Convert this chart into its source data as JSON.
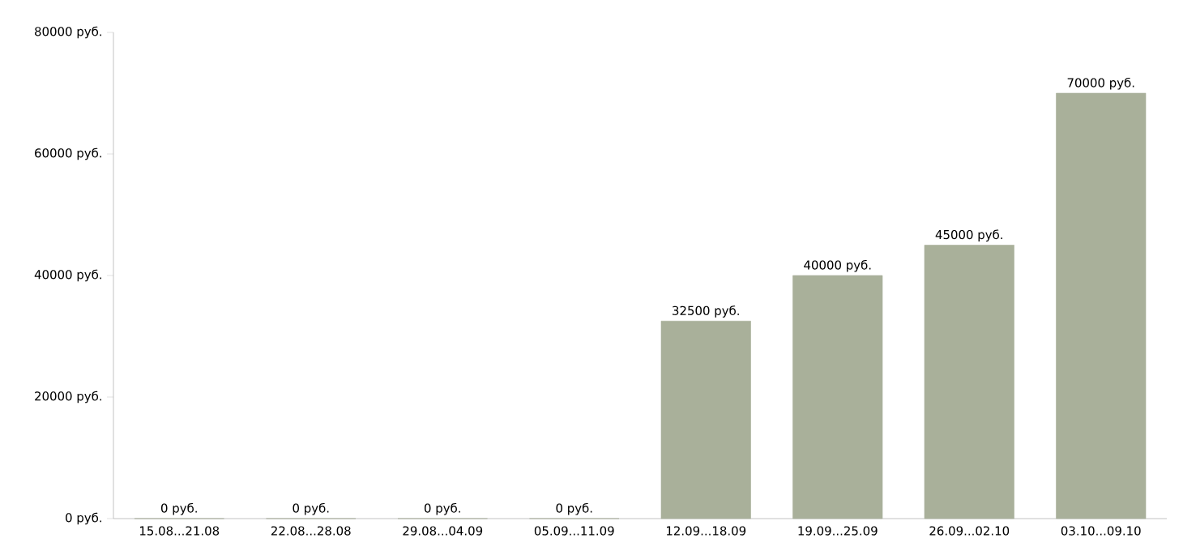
{
  "chart_data": {
    "type": "bar",
    "categories": [
      "15.08...21.08",
      "22.08...28.08",
      "29.08...04.09",
      "05.09...11.09",
      "12.09...18.09",
      "19.09...25.09",
      "26.09...02.10",
      "03.10...09.10"
    ],
    "values": [
      0,
      0,
      0,
      0,
      32500,
      40000,
      45000,
      70000
    ],
    "value_labels": [
      "0 руб.",
      "0 руб.",
      "0 руб.",
      "0 руб.",
      "32500 руб.",
      "40000 руб.",
      "45000 руб.",
      "70000 руб."
    ],
    "color": "#a9b09a",
    "ylim": [
      0,
      80000
    ],
    "yticks": [
      {
        "value": 0,
        "label": "0 руб."
      },
      {
        "value": 20000,
        "label": "20000 руб."
      },
      {
        "value": 40000,
        "label": "40000 руб."
      },
      {
        "value": 60000,
        "label": "60000 руб."
      },
      {
        "value": 80000,
        "label": "80000 руб."
      }
    ],
    "grid": false
  }
}
